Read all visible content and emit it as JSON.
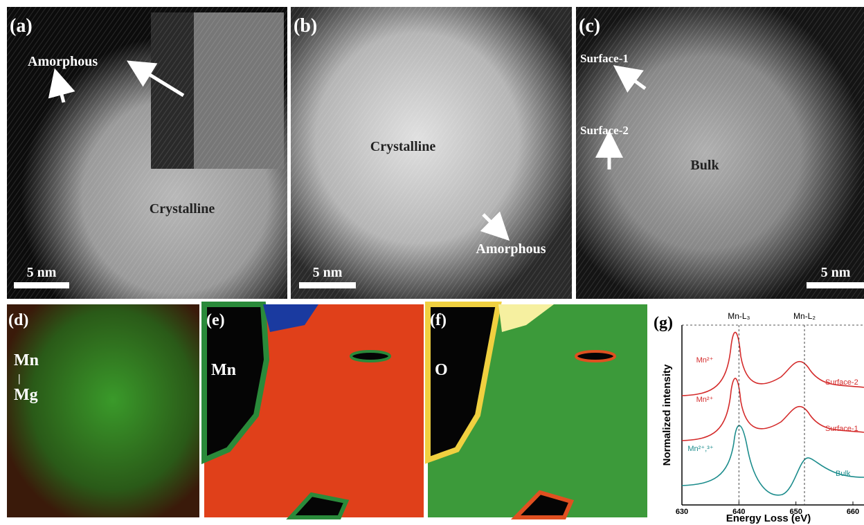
{
  "panels": [
    {
      "label": "(a)",
      "annotations": [
        "Amorphous",
        "Crystalline"
      ],
      "scale_bar": "5 nm"
    },
    {
      "label": "(b)",
      "annotations": [
        "Crystalline",
        "Amorphous"
      ],
      "scale_bar": "5 nm"
    },
    {
      "label": "(c)",
      "annotations": [
        "Surface-1",
        "Surface-2",
        "Bulk"
      ],
      "scale_bar": "5 nm"
    },
    {
      "label": "(d)",
      "annotations": [
        "Mn",
        "|",
        "Mg"
      ]
    },
    {
      "label": "(e)",
      "annotations": [
        "Mn"
      ]
    },
    {
      "label": "(f)",
      "annotations": [
        "O"
      ]
    }
  ],
  "chart_data": {
    "type": "line",
    "label": "(g)",
    "x_label": "Energy Loss (eV)",
    "y_label": "Normalized intensity",
    "xticks": [
      630,
      640,
      650,
      660
    ],
    "reference_lines": [
      {
        "x": 640,
        "label": "Mn-L₃"
      },
      {
        "x": 651.5,
        "label": "Mn-L₂"
      }
    ],
    "curves": [
      {
        "name": "Surface-2",
        "state": "Mn²⁺",
        "color": "#d42a2a"
      },
      {
        "name": "Surface-1",
        "state": "Mn²⁺",
        "color": "#d42a2a"
      },
      {
        "name": "Bulk",
        "state": "Mn²⁺,³⁺",
        "color": "#1b8c8c"
      }
    ]
  }
}
